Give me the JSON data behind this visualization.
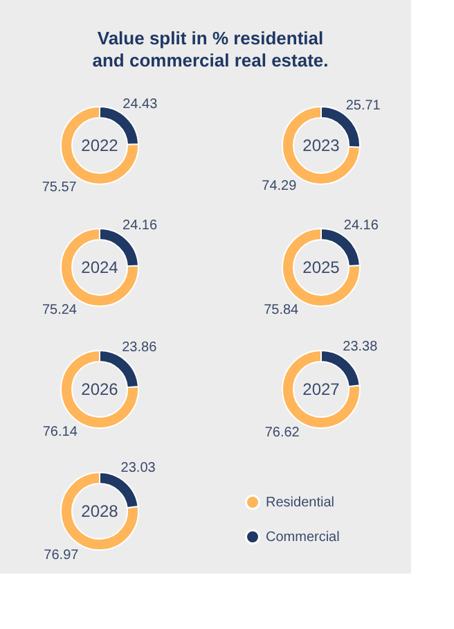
{
  "chart_data": [
    {
      "type": "donut",
      "title": "Value split in % residential and commercial real estate.",
      "annotations": [
        "2022"
      ],
      "values": [
        75.57,
        24.43
      ],
      "colors": [
        "#ffb55a",
        "#1f3864"
      ],
      "data_labels": true
    },
    {
      "type": "donut",
      "annotations": [
        "2023"
      ],
      "values": [
        74.29,
        25.71
      ],
      "colors": [
        "#ffb55a",
        "#1f3864"
      ],
      "data_labels": true
    },
    {
      "type": "donut",
      "annotations": [
        "2024"
      ],
      "values": [
        75.24,
        24.16
      ],
      "colors": [
        "#ffb55a",
        "#1f3864"
      ],
      "data_labels": true
    },
    {
      "type": "donut",
      "annotations": [
        "2025"
      ],
      "values": [
        75.84,
        24.16
      ],
      "colors": [
        "#ffb55a",
        "#1f3864"
      ],
      "data_labels": true
    },
    {
      "type": "donut",
      "annotations": [
        "2026"
      ],
      "values": [
        76.14,
        23.86
      ],
      "colors": [
        "#ffb55a",
        "#1f3864"
      ],
      "data_labels": true
    },
    {
      "type": "donut",
      "annotations": [
        "2027"
      ],
      "values": [
        76.62,
        23.38
      ],
      "colors": [
        "#ffb55a",
        "#1f3864"
      ],
      "data_labels": true
    },
    {
      "type": "donut",
      "annotations": [
        "2028"
      ],
      "categories": [
        "Residential",
        "Commercial"
      ],
      "values": [
        76.97,
        23.03
      ],
      "colors": [
        "#ffb55a",
        "#1f3864"
      ],
      "data_labels": true,
      "legend": "right"
    }
  ]
}
